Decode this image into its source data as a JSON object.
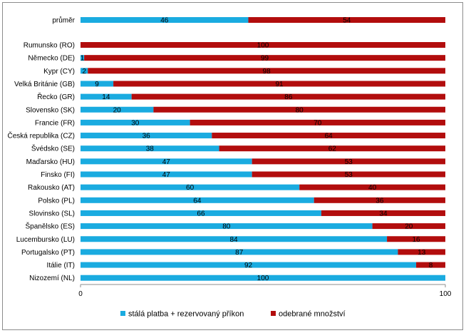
{
  "chart_data": {
    "type": "bar",
    "orientation": "horizontal",
    "stacked": true,
    "categories": [
      "průměr",
      "Rumunsko (RO)",
      "Německo (DE)",
      "Kypr (CY)",
      "Velká Británie (GB)",
      "Řecko (GR)",
      "Slovensko (SK)",
      "Francie (FR)",
      "Česká republika (CZ)",
      "Švédsko (SE)",
      "Maďarsko (HU)",
      "Finsko (FI)",
      "Rakousko (AT)",
      "Polsko (PL)",
      "Slovinsko (SL)",
      "Španělsko (ES)",
      "Lucembursko (LU)",
      "Portugalsko (PT)",
      "Itálie (IT)",
      "Nizozemí (NL)"
    ],
    "series": [
      {
        "name": "stálá platba + rezervovaný příkon",
        "color": "#1aabe0",
        "values": [
          46,
          0,
          1,
          2,
          9,
          14,
          20,
          30,
          36,
          38,
          47,
          47,
          60,
          64,
          66,
          80,
          84,
          87,
          92,
          100
        ]
      },
      {
        "name": "odebrané množství",
        "color": "#b20d0d",
        "values": [
          54,
          100,
          99,
          98,
          91,
          86,
          80,
          70,
          64,
          62,
          53,
          53,
          40,
          36,
          34,
          20,
          16,
          13,
          8,
          0
        ]
      }
    ],
    "xlim": [
      0,
      100
    ],
    "xticks": [
      "0",
      "100"
    ],
    "grid": false,
    "legend": "bottom"
  }
}
